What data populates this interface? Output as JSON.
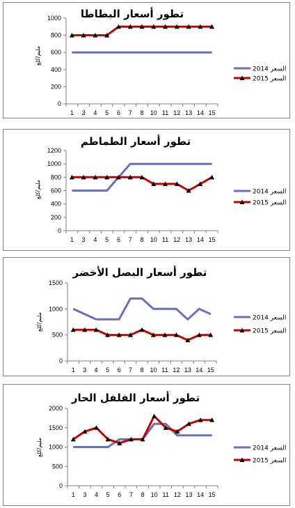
{
  "chart_data": [
    {
      "type": "line",
      "title": "تطور أسعار البطاطا",
      "ylabel": "مليم/كلغ",
      "ylim": [
        0,
        1000
      ],
      "yticks": [
        0,
        200,
        400,
        600,
        800,
        1000
      ],
      "x": [
        1,
        3,
        4,
        5,
        6,
        7,
        8,
        10,
        11,
        12,
        13,
        14,
        15
      ],
      "xtick_labels": [
        "1",
        "3",
        "4",
        "5",
        "6",
        "7",
        "8",
        "10",
        "11",
        "12",
        "13",
        "14",
        "15"
      ],
      "series": [
        {
          "name": "السعر 2014",
          "color": "#6b6fb5",
          "marker": "none",
          "values": [
            600,
            600,
            600,
            600,
            600,
            600,
            600,
            600,
            600,
            600,
            600,
            600,
            600
          ]
        },
        {
          "name": "السعر 2015",
          "color": "#c00000",
          "marker": "triangle",
          "values": [
            800,
            800,
            800,
            800,
            900,
            900,
            900,
            900,
            900,
            900,
            900,
            900,
            900
          ]
        }
      ],
      "legend": "right"
    },
    {
      "type": "line",
      "title": "تطور أسعار الطماطم",
      "ylabel": "مليم/كلغ",
      "ylim": [
        0,
        1200
      ],
      "yticks": [
        0,
        200,
        400,
        600,
        800,
        1000,
        1200
      ],
      "x": [
        1,
        3,
        4,
        5,
        6,
        7,
        8,
        10,
        11,
        12,
        13,
        14,
        15
      ],
      "xtick_labels": [
        "1",
        "3",
        "4",
        "5",
        "6",
        "7",
        "8",
        "10",
        "11",
        "12",
        "13",
        "14",
        "15"
      ],
      "series": [
        {
          "name": "السعر 2014",
          "color": "#6b6fb5",
          "marker": "none",
          "values": [
            600,
            600,
            600,
            600,
            800,
            1000,
            1000,
            1000,
            1000,
            1000,
            1000,
            1000,
            1000
          ]
        },
        {
          "name": "السعر 2015",
          "color": "#c00000",
          "marker": "triangle",
          "values": [
            800,
            800,
            800,
            800,
            800,
            800,
            800,
            700,
            700,
            700,
            600,
            700,
            800
          ]
        }
      ],
      "legend": "right"
    },
    {
      "type": "line",
      "title": "تطور أسعار البصل الأخضر",
      "ylabel": "مليم/كلغ",
      "ylim": [
        0,
        1500
      ],
      "yticks": [
        0,
        500,
        1000,
        1500
      ],
      "x": [
        1,
        3,
        4,
        5,
        6,
        7,
        8,
        10,
        11,
        12,
        13,
        14,
        15
      ],
      "xtick_labels": [
        "1",
        "3",
        "4",
        "5",
        "6",
        "7",
        "8",
        "10",
        "11",
        "12",
        "13",
        "14",
        "15"
      ],
      "series": [
        {
          "name": "السعر 2014",
          "color": "#6b6fb5",
          "marker": "none",
          "values": [
            1000,
            900,
            800,
            800,
            800,
            1200,
            1200,
            1000,
            1000,
            1000,
            800,
            1000,
            900
          ]
        },
        {
          "name": "السعر 2015",
          "color": "#c00000",
          "marker": "triangle",
          "values": [
            600,
            600,
            600,
            500,
            500,
            500,
            600,
            500,
            500,
            500,
            400,
            500,
            500
          ]
        }
      ],
      "legend": "right"
    },
    {
      "type": "line",
      "title": "تطور أسعار الفلفل الحار",
      "ylabel": "مليم/كلغ",
      "ylim": [
        0,
        2000
      ],
      "yticks": [
        0,
        500,
        1000,
        1500,
        2000
      ],
      "x": [
        1,
        3,
        4,
        5,
        6,
        7,
        8,
        10,
        11,
        12,
        13,
        14,
        15
      ],
      "xtick_labels": [
        "1",
        "3",
        "4",
        "5",
        "6",
        "7",
        "8",
        "10",
        "11",
        "12",
        "13",
        "14",
        "15"
      ],
      "series": [
        {
          "name": "السعر 2014",
          "color": "#6b6fb5",
          "marker": "none",
          "values": [
            1000,
            1000,
            1000,
            1000,
            1200,
            1200,
            1200,
            1600,
            1600,
            1300,
            1300,
            1300,
            1300
          ]
        },
        {
          "name": "السعر 2015",
          "color": "#c00000",
          "marker": "triangle",
          "values": [
            1200,
            1400,
            1500,
            1200,
            1100,
            1200,
            1200,
            1800,
            1500,
            1400,
            1600,
            1700,
            1700
          ]
        }
      ],
      "legend": "right"
    }
  ]
}
